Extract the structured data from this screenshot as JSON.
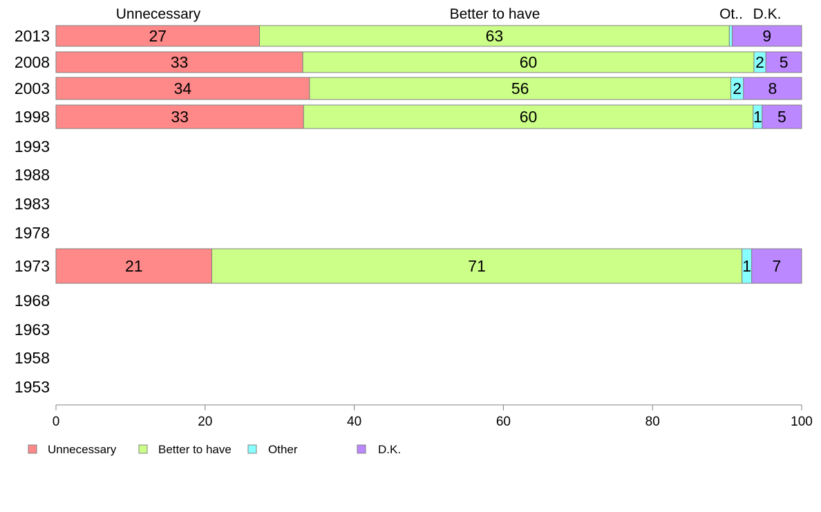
{
  "chart_data": {
    "type": "bar",
    "orientation": "horizontal",
    "stacked": true,
    "categories": [
      "2013",
      "2008",
      "2003",
      "1998",
      "1993",
      "1988",
      "1983",
      "1978",
      "1973",
      "1968",
      "1963",
      "1958",
      "1953"
    ],
    "series": [
      {
        "name": "Unnecessary",
        "color": "#ff8888",
        "values": [
          27.3,
          33.1,
          34.0,
          33.2,
          null,
          null,
          null,
          null,
          20.9,
          null,
          null,
          null,
          null
        ],
        "labels": [
          "27",
          "33",
          "34",
          "33",
          "",
          "",
          "",
          "",
          "21",
          "",
          "",
          "",
          ""
        ]
      },
      {
        "name": "Better to have",
        "color": "#ccff88",
        "values": [
          63.0,
          60.5,
          56.5,
          60.3,
          null,
          null,
          null,
          null,
          71.1,
          null,
          null,
          null,
          null
        ],
        "labels": [
          "63",
          "60",
          "56",
          "60",
          "",
          "",
          "",
          "",
          "71",
          "",
          "",
          "",
          ""
        ]
      },
      {
        "name": "Other",
        "color": "#88ffff",
        "values": [
          0.4,
          1.6,
          1.7,
          1.2,
          null,
          null,
          null,
          null,
          1.3,
          null,
          null,
          null,
          null
        ],
        "labels": [
          "",
          "2",
          "2",
          "1",
          "",
          "",
          "",
          "",
          "1",
          "",
          "",
          "",
          ""
        ]
      },
      {
        "name": "D.K.",
        "color": "#bb88ff",
        "values": [
          9.3,
          4.8,
          7.8,
          5.3,
          null,
          null,
          null,
          null,
          6.7,
          null,
          null,
          null,
          null
        ],
        "labels": [
          "9",
          "5",
          "8",
          "5",
          "",
          "",
          "",
          "",
          "7",
          "",
          "",
          "",
          ""
        ]
      }
    ],
    "top_labels": [
      "Unnecessary",
      "Better to have",
      "Ot..",
      "D.K."
    ],
    "xlim": [
      0,
      100
    ],
    "xticks": [
      0,
      20,
      40,
      60,
      80,
      100
    ],
    "grid": false,
    "legend_position": "bottom-left",
    "title": "",
    "xlabel": "",
    "ylabel": ""
  }
}
